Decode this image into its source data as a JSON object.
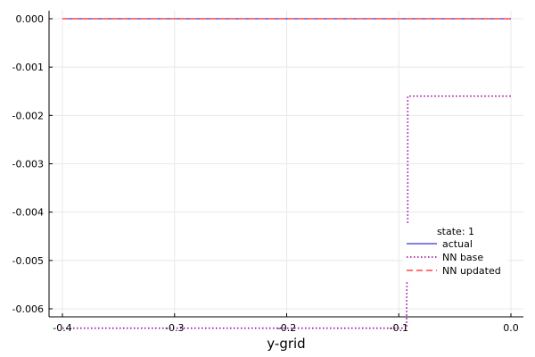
{
  "chart_data": {
    "type": "line",
    "xlabel": "y-grid",
    "ylabel": "",
    "xlim": [
      -0.4,
      0.0
    ],
    "ylim": [
      -0.0066,
      0.0002
    ],
    "x_ticks": [
      -0.4,
      -0.3,
      -0.2,
      -0.1,
      0.0
    ],
    "x_tick_labels": [
      "-0.4",
      "-0.3",
      "-0.2",
      "-0.1",
      "0.0"
    ],
    "y_ticks": [
      0.0,
      -0.001,
      -0.002,
      -0.003,
      -0.004,
      -0.005,
      -0.006
    ],
    "y_tick_labels": [
      "0.000",
      "-0.001",
      "-0.002",
      "-0.003",
      "-0.004",
      "-0.005",
      "-0.006"
    ],
    "grid": true,
    "legend": {
      "title": "state: 1",
      "placement": "bottom-right"
    },
    "series": [
      {
        "name": "actual",
        "color": "#0000cc",
        "dash": "solid",
        "x": [
          -0.4,
          0.0
        ],
        "y": [
          0.0,
          0.0
        ]
      },
      {
        "name": "NN base",
        "color": "#a000a0",
        "dash": "dotted",
        "x": [
          -0.4,
          -0.093,
          -0.093,
          -0.092,
          -0.092,
          0.0
        ],
        "y": [
          -0.0064,
          -0.0064,
          -0.0059,
          -0.0044,
          -0.0016,
          -0.0016
        ]
      },
      {
        "name": "NN updated",
        "color": "#ff2020",
        "dash": "dashed",
        "x": [
          -0.4,
          0.0
        ],
        "y": [
          0.0,
          0.0
        ]
      }
    ]
  }
}
